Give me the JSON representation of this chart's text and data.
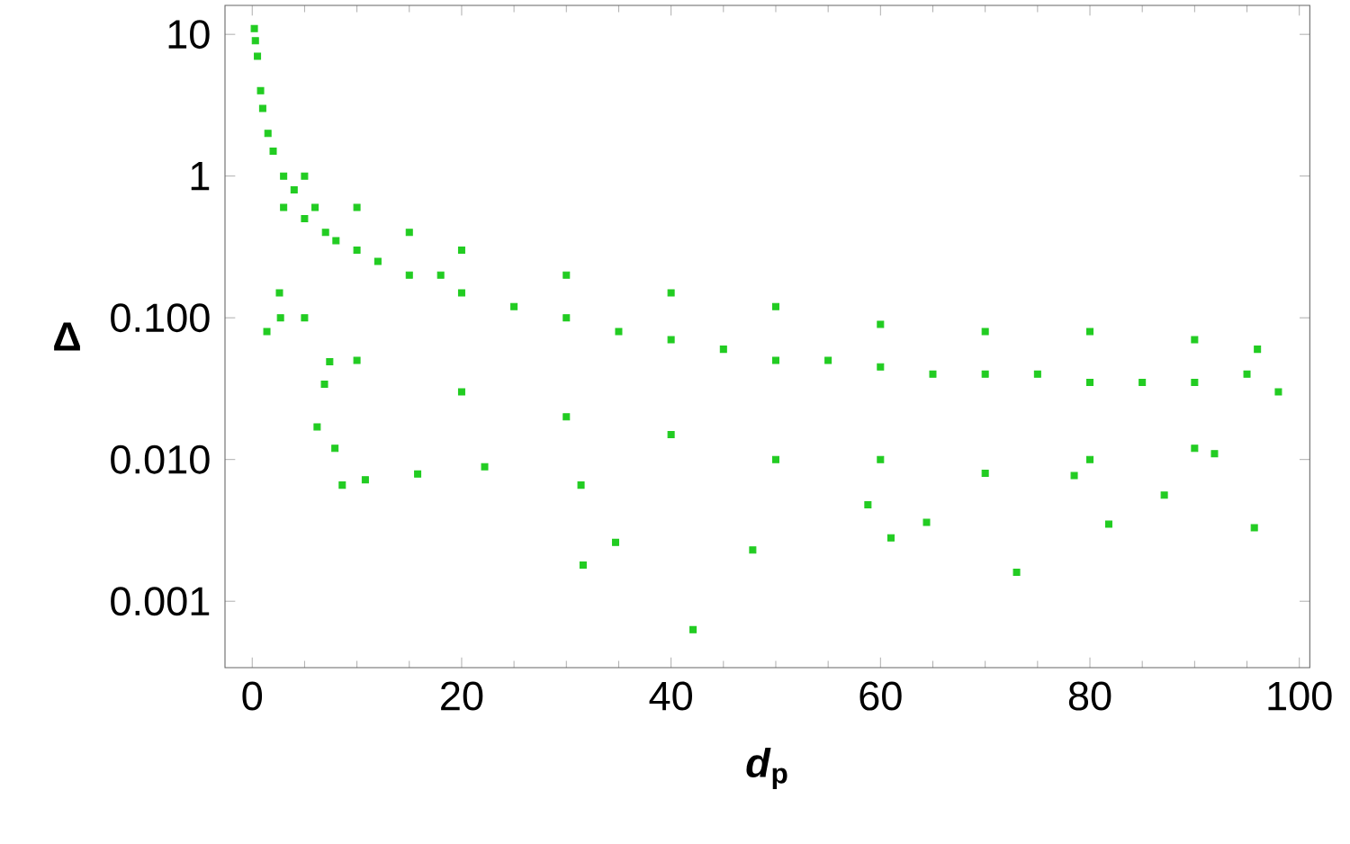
{
  "chart_data": {
    "type": "scatter",
    "xlabel": "*d*$_{p}$",
    "ylabel": "Δ",
    "log": "y",
    "marker": "square",
    "color": "#22cc22",
    "xlim": [
      -2.6,
      101
    ],
    "ylim": [
      0.00034,
      16
    ],
    "xticks": [
      0,
      20,
      40,
      60,
      80,
      100
    ],
    "yticks": [
      {
        "value": 10,
        "label": "10"
      },
      {
        "value": 1,
        "label": "1"
      },
      {
        "value": 0.1,
        "label": "0.100"
      },
      {
        "value": 0.01,
        "label": "0.010"
      },
      {
        "value": 0.001,
        "label": "0.001"
      }
    ],
    "x": [
      0.2,
      0.3,
      0.5,
      0.8,
      1,
      1.5,
      2,
      3,
      3,
      4,
      5,
      6,
      7,
      8,
      10,
      12,
      15,
      18,
      20,
      25,
      30,
      35,
      40,
      45,
      50,
      55,
      60,
      65,
      70,
      75,
      80,
      85,
      90,
      95,
      98,
      5,
      10,
      15,
      20,
      30,
      40,
      50,
      60,
      70,
      80,
      90,
      96,
      5,
      10,
      20,
      30,
      40,
      50,
      60,
      70,
      80,
      90,
      6.2,
      7.9,
      8.6,
      15.8,
      10.8,
      22.2,
      31.4,
      31.6,
      34.7,
      42.1,
      47.8,
      58.8,
      61,
      64.4,
      73,
      78.5,
      81.8,
      87.1,
      95.7,
      91.9,
      1.4,
      2.6,
      2.7,
      6.9,
      7.4
    ],
    "values": [
      11,
      9,
      7,
      4,
      3,
      2,
      1.5,
      1,
      0.6,
      0.8,
      0.5,
      0.6,
      0.4,
      0.35,
      0.3,
      0.25,
      0.2,
      0.2,
      0.15,
      0.12,
      0.1,
      0.08,
      0.07,
      0.06,
      0.05,
      0.05,
      0.045,
      0.04,
      0.04,
      0.04,
      0.035,
      0.035,
      0.035,
      0.04,
      0.03,
      1,
      0.6,
      0.4,
      0.3,
      0.2,
      0.15,
      0.12,
      0.09,
      0.08,
      0.08,
      0.07,
      0.06,
      0.1,
      0.05,
      0.03,
      0.02,
      0.015,
      0.01,
      0.01,
      0.008,
      0.01,
      0.012,
      0.017,
      0.012,
      0.0066,
      0.0079,
      0.0072,
      0.0089,
      0.0066,
      0.0018,
      0.0026,
      0.00063,
      0.0023,
      0.0048,
      0.0028,
      0.0036,
      0.0016,
      0.0077,
      0.0035,
      0.0056,
      0.0033,
      0.011,
      0.08,
      0.15,
      0.1,
      0.034,
      0.049
    ]
  }
}
